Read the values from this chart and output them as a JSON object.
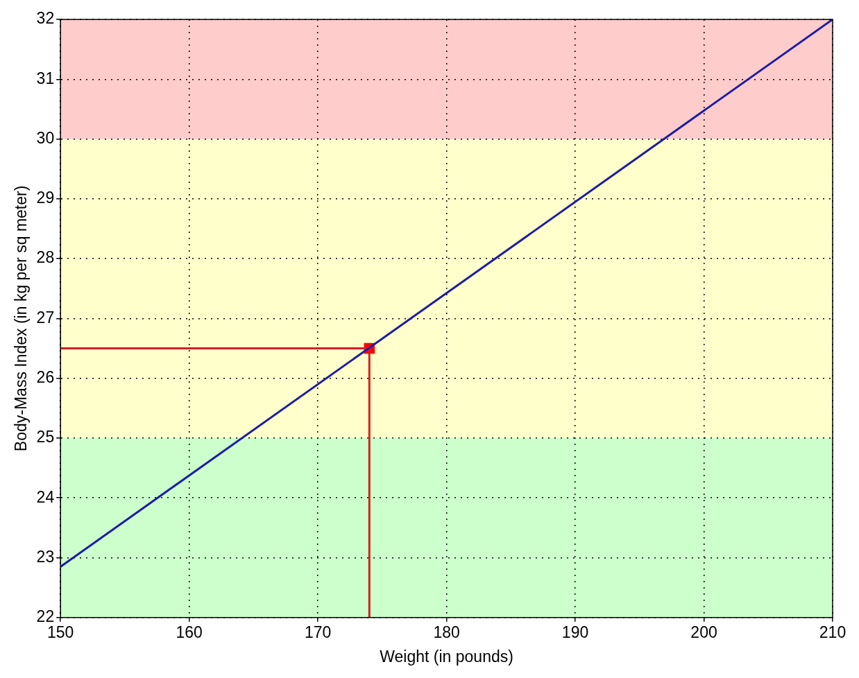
{
  "chart_data": {
    "type": "line",
    "xlabel": "Weight (in pounds)",
    "ylabel": "Body-Mass Index (in kg per sq meter)",
    "xlim": [
      150,
      210
    ],
    "xticks": [
      150,
      160,
      170,
      180,
      190,
      200,
      210
    ],
    "ylim": [
      22,
      32
    ],
    "yticks": [
      22,
      23,
      24,
      25,
      26,
      27,
      28,
      29,
      30,
      31,
      32
    ],
    "grid": true,
    "legend": false,
    "bands": [
      {
        "axis": "y",
        "from": 22,
        "to": 25,
        "color": "#ccffcc"
      },
      {
        "axis": "y",
        "from": 25,
        "to": 30,
        "color": "#ffffcc"
      },
      {
        "axis": "y",
        "from": 30,
        "to": 32,
        "color": "#ffcccc"
      }
    ],
    "series": [
      {
        "x": [
          150,
          210
        ],
        "values": [
          22.85,
          32.0
        ],
        "color": "#1c1ca8",
        "marker": "none"
      },
      {
        "x": [
          150,
          174
        ],
        "values": [
          26.5,
          26.5
        ],
        "color": "#d42020",
        "marker": "none"
      },
      {
        "x": [
          174,
          174
        ],
        "values": [
          22,
          26.5
        ],
        "color": "#d42020",
        "marker": "none"
      },
      {
        "type": "scatter",
        "x": [
          174
        ],
        "values": [
          26.5
        ],
        "color": "#ff0000",
        "marker": "square"
      }
    ]
  }
}
